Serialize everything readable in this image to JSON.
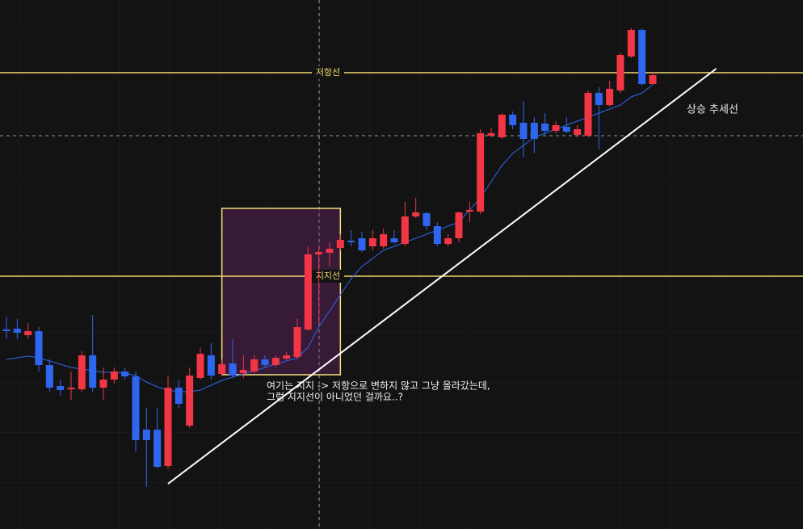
{
  "chart_data": {
    "type": "candlestick",
    "categories": [
      null,
      null,
      null,
      null,
      null,
      null,
      null,
      null,
      null,
      null,
      null,
      null,
      null,
      null,
      null,
      null,
      null,
      null,
      null,
      null,
      null,
      null,
      null,
      null,
      null,
      null,
      null,
      null,
      null,
      null,
      null,
      null,
      null,
      null,
      null,
      null,
      null,
      null,
      null,
      null,
      null,
      null,
      null,
      null,
      null,
      null,
      null,
      null,
      null,
      null,
      null,
      null,
      null,
      null,
      null,
      null,
      null,
      null,
      null,
      null,
      null
    ],
    "open": [
      247,
      248,
      240,
      245,
      203,
      177,
      173,
      173,
      215,
      175,
      185,
      195,
      189,
      123,
      123,
      78,
      175,
      128,
      187,
      215,
      192,
      205,
      193,
      195,
      210,
      203,
      211,
      213,
      247,
      340,
      342,
      348,
      357,
      360,
      350,
      350,
      360,
      353,
      387,
      391,
      375,
      353,
      360,
      393,
      393,
      487,
      485,
      513,
      503,
      503,
      502,
      493,
      498,
      488,
      487,
      540,
      525,
      543,
      585,
      618,
      551
    ],
    "high": [
      263,
      260,
      255,
      250,
      210,
      185,
      195,
      220,
      265,
      200,
      200,
      200,
      195,
      150,
      150,
      190,
      185,
      200,
      225,
      230,
      210,
      235,
      215,
      215,
      215,
      215,
      219,
      260,
      350,
      350,
      355,
      365,
      370,
      368,
      370,
      372,
      370,
      405,
      410,
      393,
      380,
      365,
      393,
      405,
      495,
      497,
      515,
      517,
      530,
      510,
      515,
      505,
      510,
      500,
      543,
      547,
      555,
      590,
      620,
      620,
      565
    ],
    "low": [
      235,
      235,
      235,
      195,
      170,
      165,
      160,
      170,
      170,
      160,
      180,
      185,
      95,
      52,
      75,
      75,
      150,
      125,
      185,
      185,
      190,
      187,
      187,
      193,
      200,
      200,
      209,
      210,
      245,
      255,
      325,
      345,
      350,
      343,
      345,
      347,
      353,
      350,
      385,
      370,
      350,
      350,
      355,
      380,
      390,
      485,
      483,
      495,
      460,
      465,
      487,
      490,
      490,
      485,
      485,
      470,
      523,
      540,
      583,
      549,
      550
    ],
    "close": [
      245,
      243,
      245,
      203,
      175,
      172,
      175,
      215,
      175,
      185,
      195,
      189,
      110,
      110,
      77,
      175,
      155,
      190,
      217,
      190,
      204,
      190,
      197,
      210,
      203,
      212,
      215,
      250,
      340,
      343,
      347,
      358,
      355,
      345,
      360,
      365,
      355,
      387,
      392,
      375,
      353,
      360,
      392,
      395,
      490,
      490,
      513,
      500,
      483,
      483,
      493,
      500,
      492,
      495,
      540,
      525,
      545,
      587,
      618,
      551,
      562
    ],
    "up_color": "#f23645",
    "down_color": "#2f66f0",
    "ma": {
      "color": "#2f66f0",
      "values": [
        210,
        212,
        214,
        212,
        208,
        204,
        200,
        198,
        196,
        194,
        194,
        193,
        190,
        182,
        176,
        172,
        170,
        170,
        172,
        178,
        184,
        188,
        192,
        196,
        200,
        204,
        208,
        212,
        225,
        250,
        270,
        290,
        310,
        325,
        335,
        345,
        350,
        355,
        360,
        365,
        370,
        375,
        380,
        395,
        410,
        430,
        450,
        465,
        475,
        485,
        490,
        495,
        500,
        505,
        510,
        515,
        520,
        525,
        535,
        540,
        550
      ]
    },
    "xlim": [
      -0.6,
      73.95
    ],
    "ylim": [
      0,
      655
    ],
    "levels": [
      {
        "label": "저항선",
        "value": 565,
        "color": "#f5d66e"
      },
      {
        "label": "지지선",
        "value": 313,
        "color": "#f5d66e"
      }
    ],
    "trendline": {
      "label": "상승 추세선",
      "x": [
        15,
        65.9
      ],
      "y": [
        56,
        570
      ],
      "color": "#ffffff"
    },
    "box": {
      "x": [
        20,
        31
      ],
      "y": [
        191,
        397
      ],
      "color": "#f5e07a"
    },
    "annotation": [
      "여기는 지지 -> 저항으로 변하지 않고 그냥 올라갔는데,",
      "그럼 지지선이 아니었던 걸까요..?"
    ]
  }
}
